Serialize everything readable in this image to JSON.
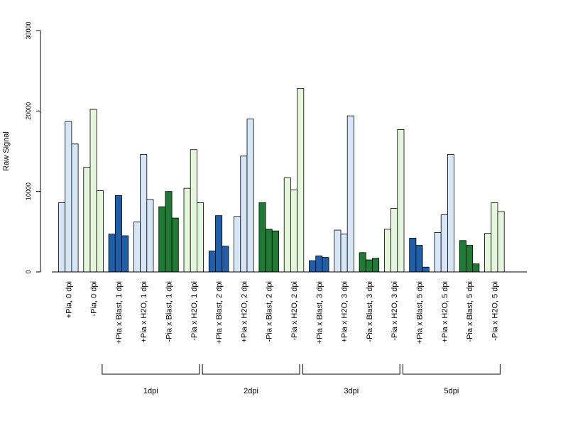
{
  "chart_data": {
    "type": "bar",
    "title": "",
    "xlabel": "",
    "ylabel": "Raw Signal",
    "ylim": [
      0,
      30000
    ],
    "yticks": [
      0,
      10000,
      20000,
      30000
    ],
    "grid": false,
    "legend": "none",
    "colors": {
      "pia_water_control": "#d6e6f6",
      "minus_pia_water_control": "#e4f6dc",
      "pia_blast": "#1f5ea8",
      "minus_pia_blast": "#1f7a33"
    },
    "categories": [
      {
        "label": "+Pia, 0 dpi",
        "color": "#d6e6f6",
        "values": [
          8600,
          18700,
          15900
        ]
      },
      {
        "label": "-Pia, 0 dpi",
        "color": "#e4f6dc",
        "values": [
          13000,
          20200,
          10100
        ]
      },
      {
        "label": "+Pia x Blast, 1 dpi",
        "color": "#1f5ea8",
        "values": [
          4700,
          9500,
          4500
        ]
      },
      {
        "label": "+Pia x H2O, 1 dpi",
        "color": "#d6e6f6",
        "values": [
          6200,
          14600,
          9000
        ]
      },
      {
        "label": "-Pia x Blast, 1 dpi",
        "color": "#1f7a33",
        "values": [
          8100,
          10000,
          6700
        ]
      },
      {
        "label": "-Pia x H2O, 1 dpi",
        "color": "#e4f6dc",
        "values": [
          10400,
          15200,
          8600
        ]
      },
      {
        "label": "+Pia x Blast, 2 dpi",
        "color": "#1f5ea8",
        "values": [
          2600,
          7000,
          3200
        ]
      },
      {
        "label": "+Pia x H2O, 2 dpi",
        "color": "#d6e6f6",
        "values": [
          6900,
          14400,
          19000
        ]
      },
      {
        "label": "-Pia x Blast, 2 dpi",
        "color": "#1f7a33",
        "values": [
          8600,
          5300,
          5100
        ]
      },
      {
        "label": "-Pia x H2O, 2 dpi",
        "color": "#e4f6dc",
        "values": [
          11700,
          10200,
          22800
        ]
      },
      {
        "label": "+Pia x Blast, 3 dpi",
        "color": "#1f5ea8",
        "values": [
          1400,
          2000,
          1800
        ]
      },
      {
        "label": "+Pia x H2O, 3 dpi",
        "color": "#d6e6f6",
        "values": [
          5200,
          4700,
          19400
        ]
      },
      {
        "label": "-Pia x Blast, 3 dpi",
        "color": "#1f7a33",
        "values": [
          2400,
          1500,
          1700
        ]
      },
      {
        "label": "-Pia x H2O, 3 dpi",
        "color": "#e4f6dc",
        "values": [
          5300,
          7900,
          17700
        ]
      },
      {
        "label": "+Pia x Blast, 5 dpi",
        "color": "#1f5ea8",
        "values": [
          4200,
          3300,
          600
        ]
      },
      {
        "label": "+Pia x H2O, 5 dpi",
        "color": "#d6e6f6",
        "values": [
          4900,
          7100,
          14600
        ]
      },
      {
        "label": "-Pia x Blast, 5 dpi",
        "color": "#1f7a33",
        "values": [
          3900,
          3300,
          1000
        ]
      },
      {
        "label": "-Pia x H2O, 5 dpi",
        "color": "#e4f6dc",
        "values": [
          4800,
          8600,
          7500
        ]
      }
    ],
    "groups": [
      {
        "label": "1dpi",
        "first": 2,
        "last": 5
      },
      {
        "label": "2dpi",
        "first": 6,
        "last": 9
      },
      {
        "label": "3dpi",
        "first": 10,
        "last": 13
      },
      {
        "label": "5dpi",
        "first": 14,
        "last": 17
      }
    ]
  }
}
